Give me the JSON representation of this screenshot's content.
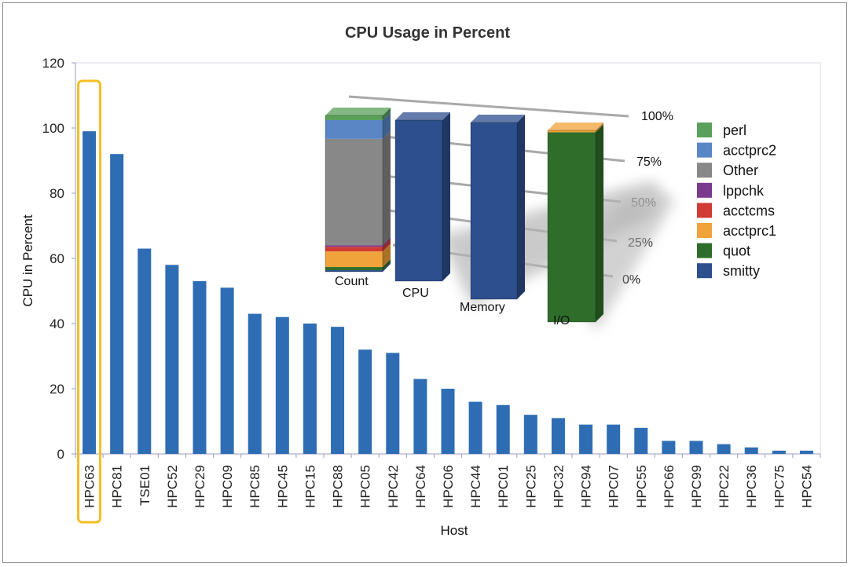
{
  "chart_data": {
    "type": "bar",
    "title": "CPU Usage in Percent",
    "xlabel": "Host",
    "ylabel": "CPU in Percent",
    "ylim": [
      0,
      120
    ],
    "yticks": [
      0,
      20,
      40,
      60,
      80,
      100,
      120
    ],
    "grid": false,
    "bar_color": "#2e6db4",
    "highlight_color": "#f5be23",
    "highlighted_category": "HPC63",
    "categories": [
      "HPC63",
      "HPC81",
      "TSE01",
      "HPC52",
      "HPC29",
      "HPC09",
      "HPC85",
      "HPC45",
      "HPC15",
      "HPC88",
      "HPC05",
      "HPC42",
      "HPC64",
      "HPC06",
      "HPC44",
      "HPC01",
      "HPC25",
      "HPC32",
      "HPC94",
      "HPC07",
      "HPC55",
      "HPC66",
      "HPC99",
      "HPC22",
      "HPC36",
      "HPC75",
      "HPC54"
    ],
    "values": [
      99,
      92,
      63,
      58,
      53,
      51,
      43,
      42,
      40,
      39,
      32,
      31,
      23,
      20,
      16,
      15,
      12,
      11,
      9,
      9,
      8,
      4,
      4,
      3,
      2,
      1,
      1
    ]
  },
  "inset": {
    "type": "stacked-bar-3d",
    "categories": [
      "Count",
      "CPU",
      "Memory",
      "I/O"
    ],
    "axis_ticks": [
      "0%",
      "25%",
      "50%",
      "75%",
      "100%"
    ],
    "legend": [
      {
        "name": "perl",
        "color": "#5aa05a"
      },
      {
        "name": "acctprc2",
        "color": "#5b86c5"
      },
      {
        "name": "Other",
        "color": "#888888"
      },
      {
        "name": "lppchk",
        "color": "#7a3b8f"
      },
      {
        "name": "acctcms",
        "color": "#d03b35"
      },
      {
        "name": "acctprc1",
        "color": "#f0a33a"
      },
      {
        "name": "quot",
        "color": "#2f6e2a"
      },
      {
        "name": "smitty",
        "color": "#2e4f8e"
      }
    ],
    "stacks": [
      {
        "category": "Count",
        "segments": [
          {
            "name": "smitty",
            "value": 1
          },
          {
            "name": "quot",
            "value": 2
          },
          {
            "name": "acctprc1",
            "value": 10
          },
          {
            "name": "acctcms",
            "value": 3
          },
          {
            "name": "lppchk",
            "value": 1
          },
          {
            "name": "Other",
            "value": 68
          },
          {
            "name": "acctprc2",
            "value": 12
          },
          {
            "name": "perl",
            "value": 3
          }
        ]
      },
      {
        "category": "CPU",
        "segments": [
          {
            "name": "smitty",
            "value": 100
          }
        ]
      },
      {
        "category": "Memory",
        "segments": [
          {
            "name": "smitty",
            "value": 100
          }
        ]
      },
      {
        "category": "I/O",
        "segments": [
          {
            "name": "quot",
            "value": 99
          },
          {
            "name": "acctprc1",
            "value": 1
          }
        ]
      }
    ]
  }
}
